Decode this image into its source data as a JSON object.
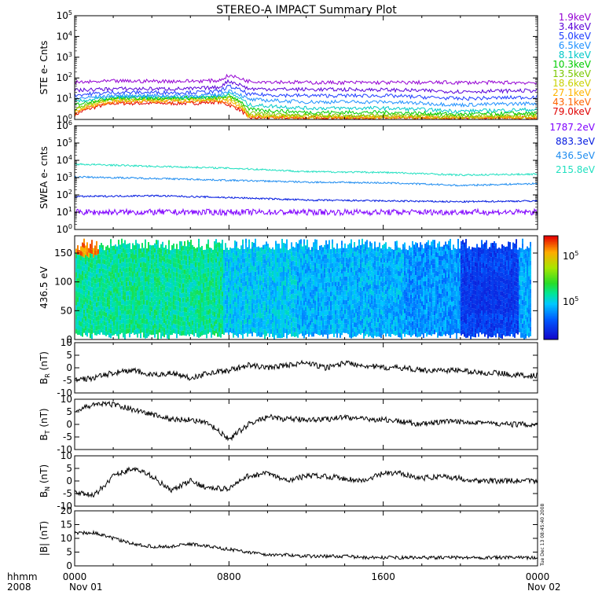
{
  "title": "STEREO-A IMPACT Summary Plot",
  "footer": {
    "row1_left": "hhmm",
    "row2_left": "2008",
    "date_start": "Nov 01",
    "date_end": "Nov 02",
    "stamp": "Tue Dec 13 08:45:40 2008"
  },
  "colors": {
    "ste_1.9": "#9400d3",
    "ste_3.4": "#5a00d8",
    "ste_5.0": "#1e3cff",
    "ste_6.5": "#1e90ff",
    "ste_8.1": "#00c8c8",
    "ste_10.3": "#00cc00",
    "ste_13.5": "#7ac800",
    "ste_18.6": "#c8d200",
    "ste_27.1": "#ffb400",
    "ste_43.1": "#ff6400",
    "ste_79.0": "#e00000",
    "swea_1787": "#7f00ff",
    "swea_883": "#0018e0",
    "swea_436": "#1e8cf0",
    "swea_215": "#20e0c0"
  },
  "chart_data": [
    {
      "type": "line",
      "ylabel": "STE e- Cnts",
      "yscale": "log",
      "ylim": [
        1,
        100000
      ],
      "y_ticks": [
        "10^0",
        "10^1",
        "10^2",
        "10^3",
        "10^4",
        "10^5"
      ],
      "x_ticks": [
        "0000",
        "0800",
        "1600",
        "0000"
      ],
      "xlim_hours": [
        0,
        24
      ],
      "series": [
        {
          "name": "1.9keV",
          "x": [
            0,
            2,
            4,
            6,
            7.5,
            8,
            9,
            12,
            16,
            20,
            24
          ],
          "values": [
            60,
            70,
            70,
            70,
            75,
            130,
            70,
            60,
            60,
            60,
            60
          ]
        },
        {
          "name": "3.4keV",
          "x": [
            0,
            2,
            4,
            6,
            7.5,
            8,
            9,
            12,
            16,
            20,
            24
          ],
          "values": [
            25,
            30,
            30,
            30,
            35,
            70,
            30,
            28,
            27,
            22,
            25
          ]
        },
        {
          "name": "5.0keV",
          "x": [
            0,
            2,
            4,
            6,
            7.5,
            8,
            9,
            12,
            16,
            20,
            24
          ],
          "values": [
            15,
            20,
            20,
            20,
            22,
            40,
            16,
            14,
            14,
            10,
            12
          ]
        },
        {
          "name": "6.5keV",
          "x": [
            0,
            2,
            4,
            6,
            7.5,
            8,
            9,
            12,
            16,
            20,
            24
          ],
          "values": [
            10,
            14,
            14,
            14,
            15,
            25,
            9,
            7,
            7,
            5,
            6
          ]
        },
        {
          "name": "8.1keV",
          "x": [
            0,
            2,
            4,
            6,
            7.5,
            8,
            9,
            12,
            16,
            20,
            24
          ],
          "values": [
            7,
            12,
            12,
            12,
            13,
            18,
            5,
            3.5,
            3.5,
            2.5,
            3
          ]
        },
        {
          "name": "10.3keV",
          "x": [
            0,
            2,
            4,
            6,
            7.5,
            8,
            9,
            12,
            16,
            20,
            24
          ],
          "values": [
            5,
            11,
            11,
            11,
            12,
            14,
            3,
            2.2,
            2.2,
            1.8,
            2
          ]
        },
        {
          "name": "13.5keV",
          "x": [
            0,
            2,
            4,
            6,
            7.5,
            8,
            9,
            12,
            16,
            20,
            24
          ],
          "values": [
            3,
            10,
            10,
            10,
            11,
            12,
            2,
            1.6,
            1.6,
            1.5,
            1.6
          ]
        },
        {
          "name": "18.6keV",
          "x": [
            0,
            2,
            4,
            6,
            7.5,
            8,
            9,
            12,
            16,
            20,
            24
          ],
          "values": [
            2.5,
            9,
            9,
            9,
            10,
            10,
            1.6,
            1.4,
            1.4,
            1.3,
            1.4
          ]
        },
        {
          "name": "27.1keV",
          "x": [
            0,
            2,
            4,
            6,
            7.5,
            8,
            9,
            12,
            16,
            20,
            24
          ],
          "values": [
            2,
            8,
            8,
            8,
            9,
            8,
            1.4,
            1.3,
            1.3,
            1.2,
            1.3
          ]
        },
        {
          "name": "43.1keV",
          "x": [
            0,
            2,
            4,
            6,
            7.5,
            8,
            9,
            12,
            16,
            20,
            24
          ],
          "values": [
            1.8,
            7,
            7,
            7,
            8,
            6,
            1.3,
            1.2,
            1.2,
            1.2,
            1.2
          ]
        },
        {
          "name": "79.0keV",
          "x": [
            0,
            2,
            4,
            6,
            7.5,
            8,
            9,
            12,
            16,
            20,
            24
          ],
          "values": [
            1.6,
            6,
            6,
            6,
            7,
            5,
            1.2,
            1.2,
            1.2,
            1.1,
            1.2
          ]
        }
      ]
    },
    {
      "type": "line",
      "ylabel": "SWEA e- cnts",
      "yscale": "log",
      "ylim": [
        1,
        1000000
      ],
      "y_ticks": [
        "10^0",
        "10^1",
        "10^2",
        "10^3",
        "10^4",
        "10^5",
        "10^6"
      ],
      "xlim_hours": [
        0,
        24
      ],
      "series": [
        {
          "name": "1787.2eV",
          "x": [
            0,
            4,
            8,
            12,
            16,
            20,
            24
          ],
          "values": [
            10,
            10,
            10,
            10,
            10,
            10,
            10
          ]
        },
        {
          "name": "883.3eV",
          "x": [
            0,
            4,
            8,
            12,
            16,
            20,
            24
          ],
          "values": [
            80,
            90,
            70,
            50,
            45,
            40,
            45
          ]
        },
        {
          "name": "436.5eV",
          "x": [
            0,
            4,
            8,
            12,
            16,
            20,
            24
          ],
          "values": [
            1100,
            900,
            700,
            550,
            500,
            350,
            450
          ]
        },
        {
          "name": "215.8eV",
          "x": [
            0,
            4,
            8,
            12,
            16,
            20,
            24
          ],
          "values": [
            6000,
            4500,
            3500,
            2200,
            2000,
            1400,
            1600
          ]
        }
      ]
    },
    {
      "type": "heatmap",
      "ylabel": "436.5 eV",
      "ylim": [
        0,
        180
      ],
      "y_ticks": [
        "0",
        "50",
        "100",
        "150"
      ],
      "colorbar_labels": [
        "10^5",
        "10^5"
      ],
      "xlim_hours": [
        0,
        24
      ],
      "bands": [
        {
          "x": [
            0,
            7.7
          ],
          "level": 0.45
        },
        {
          "x": [
            7.7,
            11.5
          ],
          "level": 0.35
        },
        {
          "x": [
            11.5,
            17
          ],
          "level": 0.32
        },
        {
          "x": [
            17,
            20
          ],
          "level": 0.28
        },
        {
          "x": [
            20,
            23
          ],
          "level": 0.15
        },
        {
          "x": [
            23,
            24
          ],
          "level": 0.3
        }
      ]
    },
    {
      "type": "line",
      "ylabel": "B_R (nT)",
      "ylim": [
        -10,
        10
      ],
      "y_ticks": [
        "-10",
        "-5",
        "0",
        "5",
        "10"
      ],
      "xlim_hours": [
        0,
        24
      ],
      "series": [
        {
          "name": "",
          "x": [
            0,
            1,
            2,
            3,
            4,
            5,
            6,
            7,
            8,
            9,
            10,
            11,
            12,
            13,
            14,
            15,
            16,
            17,
            18,
            19,
            20,
            21,
            22,
            23,
            24
          ],
          "values": [
            -5,
            -4,
            -2,
            -1,
            -3,
            -2,
            -4,
            -2,
            -1,
            1,
            0,
            1,
            2,
            0,
            2,
            1,
            0,
            0,
            -1,
            -1,
            -1,
            -2,
            -2,
            -3,
            -3
          ]
        }
      ]
    },
    {
      "type": "line",
      "ylabel": "B_T (nT)",
      "ylim": [
        -10,
        10
      ],
      "y_ticks": [
        "-10",
        "-5",
        "0",
        "5",
        "10"
      ],
      "xlim_hours": [
        0,
        24
      ],
      "series": [
        {
          "name": "",
          "x": [
            0,
            1,
            2,
            3,
            4,
            5,
            6,
            7,
            8,
            9,
            10,
            11,
            12,
            13,
            14,
            15,
            16,
            17,
            18,
            19,
            20,
            21,
            22,
            23,
            24
          ],
          "values": [
            5,
            8,
            8,
            6,
            4,
            2,
            2,
            0,
            -6,
            0,
            3,
            2,
            2,
            2,
            3,
            2,
            2,
            1,
            0,
            1,
            1,
            1,
            0,
            0,
            0
          ]
        }
      ]
    },
    {
      "type": "line",
      "ylabel": "B_N (nT)",
      "ylim": [
        -10,
        10
      ],
      "y_ticks": [
        "-10",
        "-5",
        "0",
        "5",
        "10"
      ],
      "xlim_hours": [
        0,
        24
      ],
      "series": [
        {
          "name": "",
          "x": [
            0,
            1,
            2,
            3,
            4,
            5,
            6,
            7,
            8,
            9,
            10,
            11,
            12,
            13,
            14,
            15,
            16,
            17,
            18,
            19,
            20,
            21,
            22,
            23,
            24
          ],
          "values": [
            -4,
            -6,
            2,
            5,
            2,
            -4,
            0,
            -3,
            -3,
            2,
            3,
            0,
            2,
            2,
            1,
            0,
            3,
            3,
            1,
            2,
            1,
            0,
            0,
            0,
            0
          ]
        }
      ]
    },
    {
      "type": "line",
      "ylabel": "|B| (nT)",
      "ylim": [
        0,
        20
      ],
      "y_ticks": [
        "0",
        "5",
        "10",
        "15",
        "20"
      ],
      "xlim_hours": [
        0,
        24
      ],
      "series": [
        {
          "name": "",
          "x": [
            0,
            1,
            2,
            3,
            4,
            5,
            6,
            7,
            8,
            9,
            10,
            11,
            12,
            13,
            14,
            15,
            16,
            17,
            18,
            19,
            20,
            21,
            22,
            23,
            24
          ],
          "values": [
            12,
            12,
            10,
            8,
            7,
            7,
            8,
            7,
            6,
            5,
            4,
            4,
            3.5,
            3.5,
            3.5,
            3,
            3,
            3,
            3,
            3,
            3,
            3,
            3,
            3,
            3
          ]
        }
      ]
    }
  ]
}
